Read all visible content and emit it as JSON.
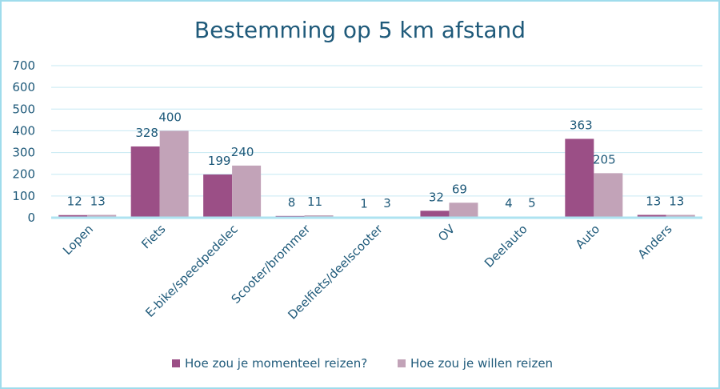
{
  "colors": {
    "series1": "#9b4f86",
    "series2": "#c2a3b8",
    "text": "#1f5a7a",
    "grid": "#c6e9f3",
    "axis": "#aee3f1",
    "border": "#9fdcec"
  },
  "chart_data": {
    "type": "bar",
    "title": "Bestemming op 5 km afstand",
    "xlabel": "",
    "ylabel": "",
    "ylim": [
      0,
      700
    ],
    "yticks": [
      0,
      100,
      200,
      300,
      400,
      500,
      600,
      700
    ],
    "grid": true,
    "legend_position": "bottom",
    "categories": [
      "Lopen",
      "Fiets",
      "E-bike/speedpedelec",
      "Scooter/brommer",
      "Deelfiets/deelscooter",
      "OV",
      "Deelauto",
      "Auto",
      "Anders"
    ],
    "series": [
      {
        "name": "Hoe zou je momenteel reizen?",
        "values": [
          12,
          328,
          199,
          8,
          1,
          32,
          4,
          363,
          13
        ]
      },
      {
        "name": "Hoe zou je willen reizen",
        "values": [
          13,
          400,
          240,
          11,
          3,
          69,
          5,
          205,
          13
        ]
      }
    ]
  }
}
